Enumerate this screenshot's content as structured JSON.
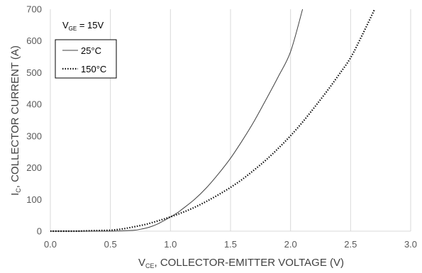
{
  "chart_data": {
    "type": "line",
    "x_axis": {
      "label_main": "V",
      "label_sub": "CE",
      "label_rest": ", COLLECTOR-EMITTER VOLTAGE (V)",
      "range": [
        0,
        3.0
      ],
      "ticks": [
        "0.0",
        "0.5",
        "1.0",
        "1.5",
        "2.0",
        "2.5",
        "3.0"
      ]
    },
    "y_axis": {
      "label_main": "I",
      "label_sub": "C",
      "label_rest": ", COLLECTOR CURRENT (A)",
      "range": [
        0,
        700
      ],
      "ticks": [
        "0",
        "100",
        "200",
        "300",
        "400",
        "500",
        "600",
        "700"
      ]
    },
    "annotation": {
      "main": "V",
      "sub": "GE",
      "rest": " = 15V"
    },
    "grid": {
      "vertical": true,
      "horizontal": false
    },
    "legend": {
      "placement": "top-left"
    },
    "series": [
      {
        "name": "25°C",
        "style": "solid",
        "color": "#404040",
        "x": [
          0.0,
          0.3,
          0.5,
          0.6,
          0.7,
          0.75,
          0.8,
          0.85,
          0.9,
          0.95,
          1.0,
          1.05,
          1.1,
          1.2,
          1.3,
          1.4,
          1.5,
          1.6,
          1.7,
          1.8,
          1.9,
          2.0,
          2.1
        ],
        "y": [
          0,
          0,
          0,
          1,
          3,
          6,
          10,
          16,
          24,
          34,
          45,
          56,
          70,
          100,
          137,
          181,
          230,
          287,
          349,
          418,
          489,
          566,
          700
        ]
      },
      {
        "name": "150°C",
        "style": "dotted",
        "color": "#000000",
        "x": [
          0.0,
          0.2,
          0.3,
          0.4,
          0.5,
          0.6,
          0.7,
          0.8,
          0.9,
          1.0,
          1.1,
          1.2,
          1.3,
          1.4,
          1.5,
          1.6,
          1.7,
          1.8,
          1.9,
          2.0,
          2.1,
          2.2,
          2.3,
          2.4,
          2.5,
          2.6,
          2.7
        ],
        "y": [
          0,
          0,
          1,
          2,
          3,
          7,
          14,
          22,
          33,
          45,
          59,
          75,
          94,
          115,
          138,
          164,
          194,
          226,
          262,
          301,
          344,
          391,
          440,
          492,
          547,
          621,
          700
        ]
      }
    ]
  }
}
